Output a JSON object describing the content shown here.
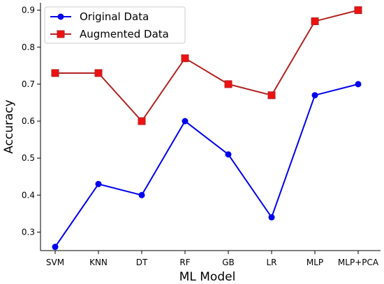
{
  "chart_data": {
    "type": "line",
    "title": "",
    "xlabel": "ML Model",
    "ylabel": "Accuracy",
    "categories": [
      "SVM",
      "KNN",
      "DT",
      "RF",
      "GB",
      "LR",
      "MLP",
      "MLP+PCA"
    ],
    "ylim": [
      0.25,
      0.92
    ],
    "yticks": [
      0.3,
      0.4,
      0.5,
      0.6,
      0.7,
      0.8,
      0.9
    ],
    "ytick_labels": [
      "0.3",
      "0.4",
      "0.5",
      "0.6",
      "0.7",
      "0.8",
      "0.9"
    ],
    "grid": false,
    "legend_position": "top-left",
    "series": [
      {
        "name": "Original Data",
        "marker": "circle",
        "color": "#0000ee",
        "values": [
          0.26,
          0.43,
          0.4,
          0.6,
          0.51,
          0.34,
          0.67,
          0.7
        ]
      },
      {
        "name": "Augmented Data",
        "marker": "square",
        "color": "#b22222",
        "marker_color": "#ee1111",
        "values": [
          0.73,
          0.73,
          0.6,
          0.77,
          0.7,
          0.67,
          0.87,
          0.9
        ]
      }
    ]
  }
}
